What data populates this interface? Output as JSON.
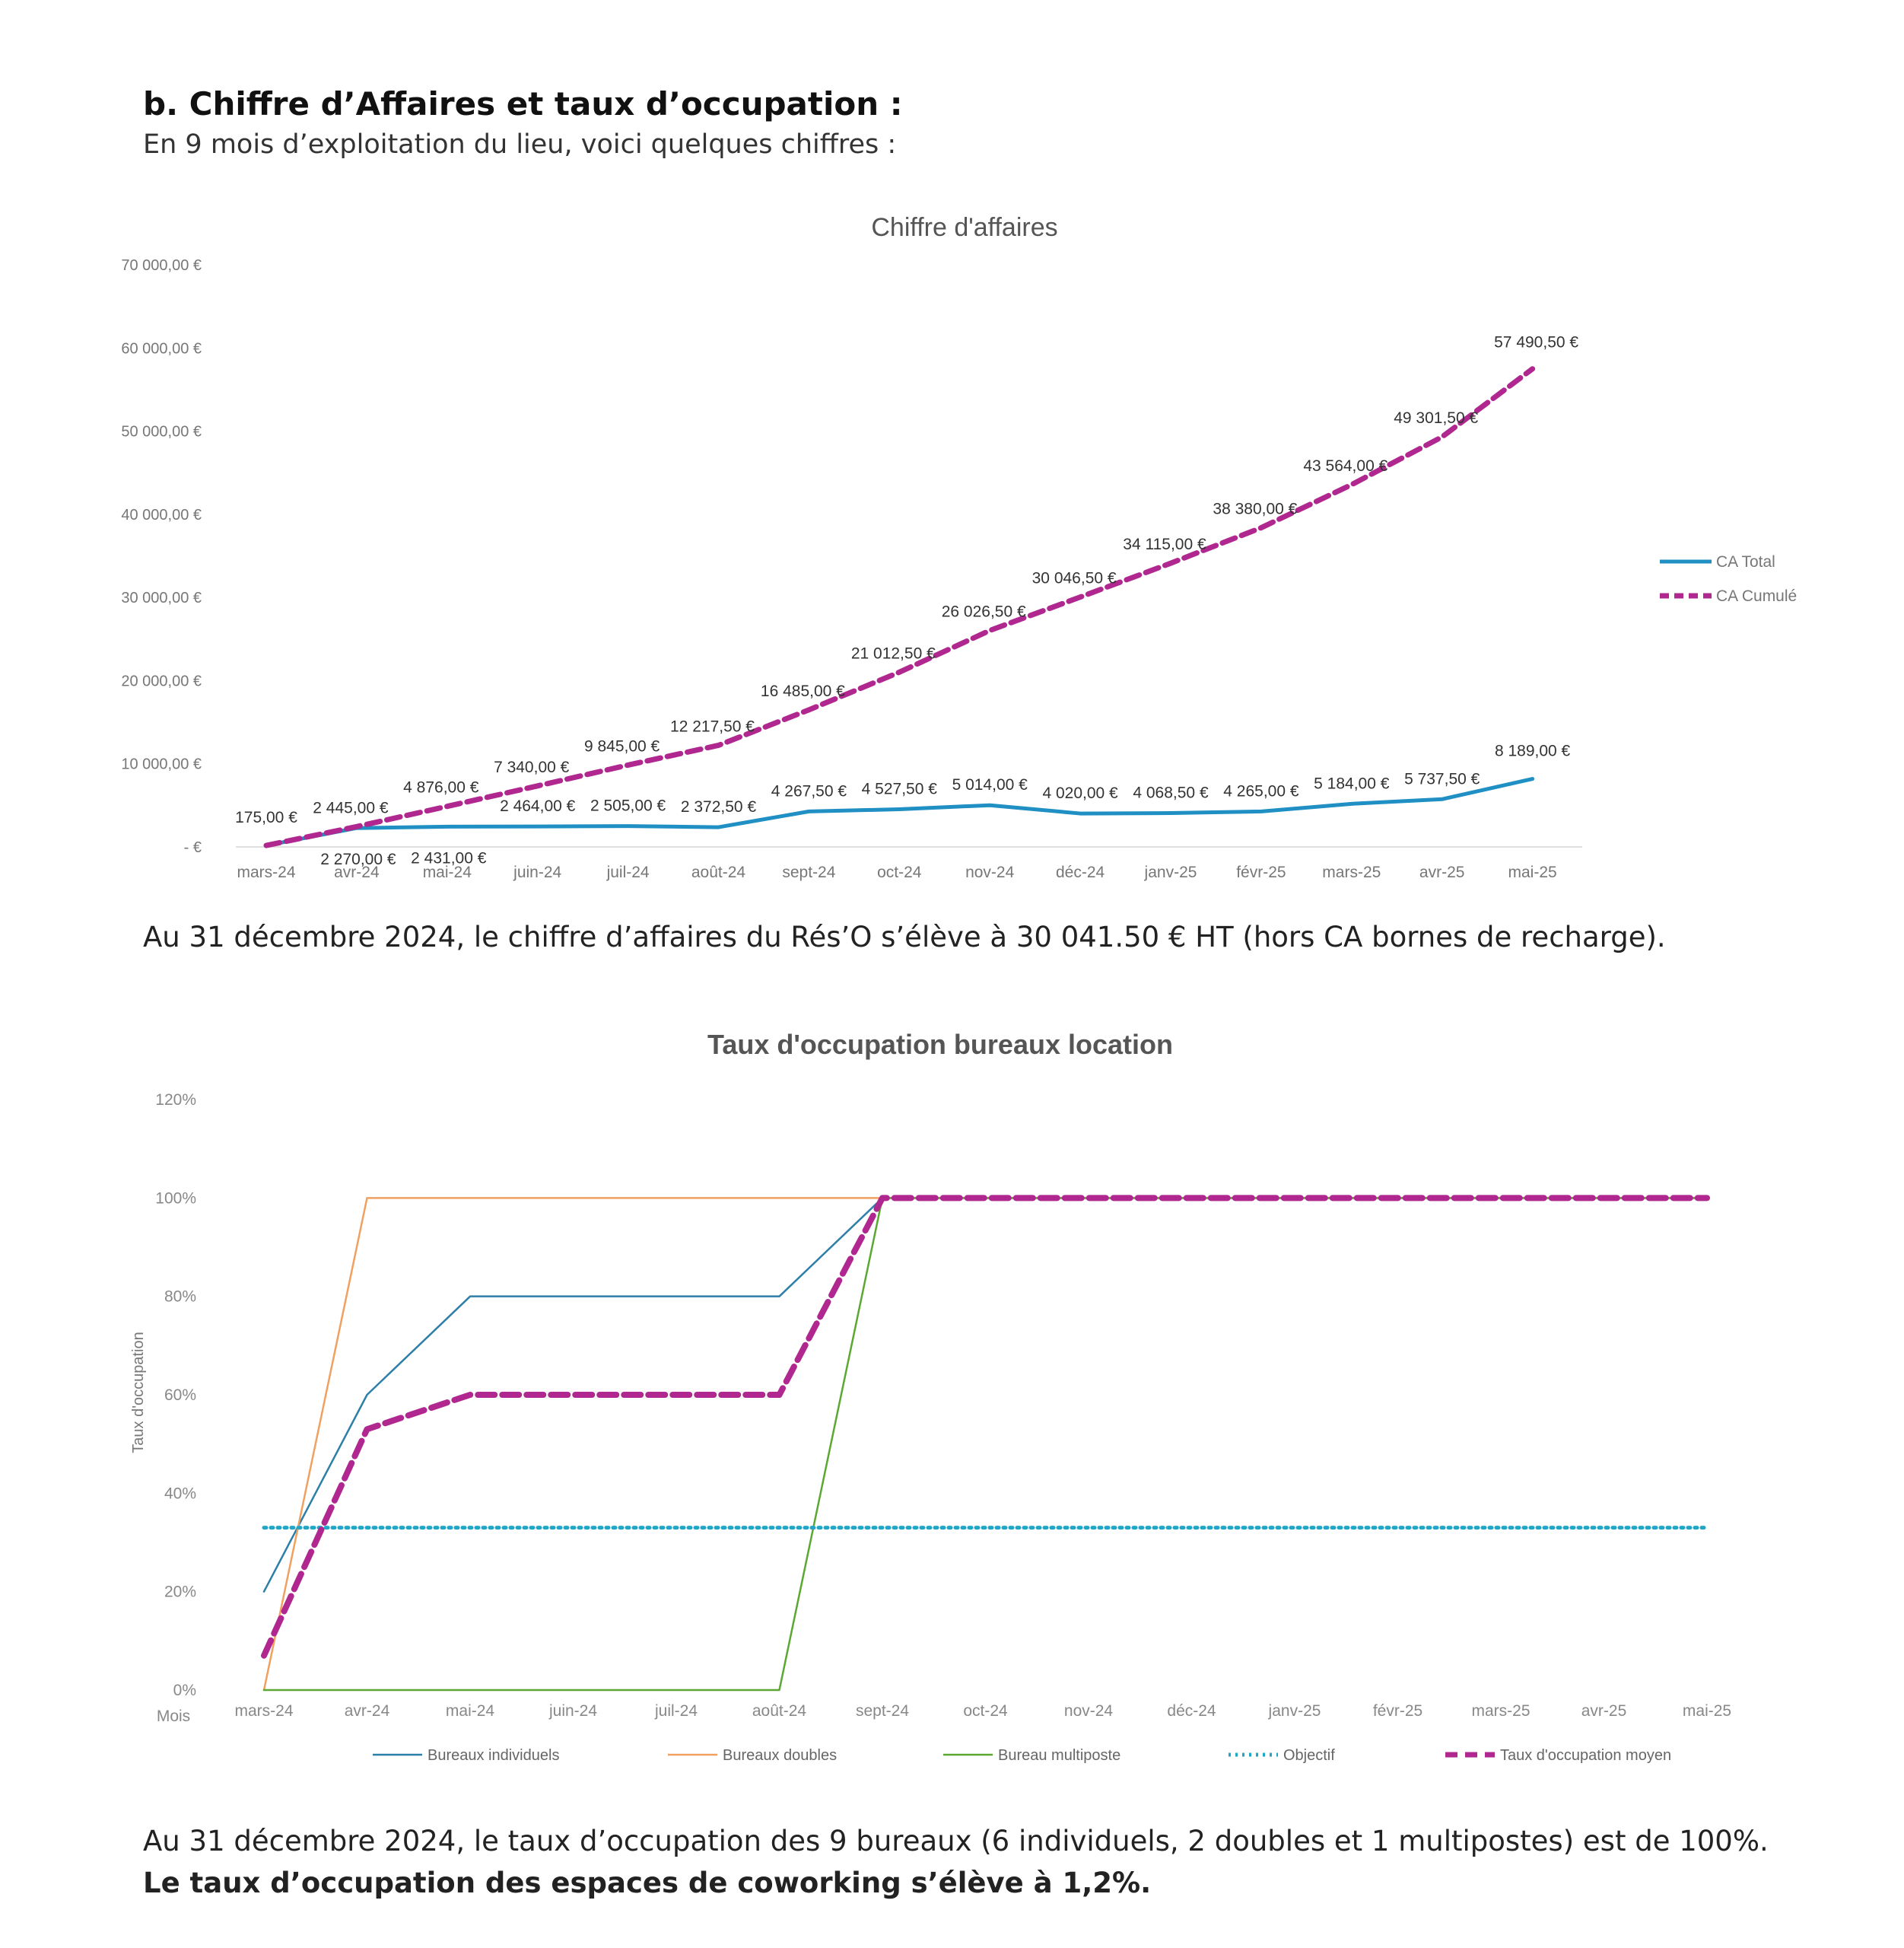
{
  "section": {
    "heading": "b. Chiffre d’Affaires et taux d’occupation :",
    "intro": "En 9 mois d’exploitation du lieu, voici quelques chiffres :"
  },
  "paragraphs": {
    "revenue_note": "Au 31 décembre 2024, le chiffre d’affaires du Rés’O s’élève à 30 041.50 € HT (hors CA bornes de recharge).",
    "occupancy_note": "Au 31 décembre 2024, le taux d’occupation des 9 bureaux (6 individuels, 2 doubles et 1 multipostes) est de 100%.",
    "coworking_note": "Le taux d’occupation des espaces de coworking s’élève à 1,2%."
  },
  "chart_data": [
    {
      "type": "line",
      "title": "Chiffre d'affaires",
      "xlabel": "",
      "ylabel": "",
      "categories": [
        "mars-24",
        "avr-24",
        "mai-24",
        "juin-24",
        "juil-24",
        "août-24",
        "sept-24",
        "oct-24",
        "nov-24",
        "déc-24",
        "janv-25",
        "févr-25",
        "mars-25",
        "avr-25",
        "mai-25"
      ],
      "ylim": [
        0,
        70000
      ],
      "yticks": [
        0,
        10000,
        20000,
        30000,
        40000,
        50000,
        60000,
        70000
      ],
      "ytick_labels": [
        "- €",
        "10 000,00 €",
        "20 000,00 €",
        "30 000,00 €",
        "40 000,00 €",
        "50 000,00 €",
        "60 000,00 €",
        "70 000,00 €"
      ],
      "grid": false,
      "legend_position": "right",
      "series": [
        {
          "name": "CA Total",
          "color": "#1f8fc4",
          "dash": "solid",
          "values": [
            175,
            2270,
            2431,
            2464,
            2505,
            2372.5,
            4267.5,
            4527.5,
            5014,
            4020,
            4068.5,
            4265,
            5184,
            5737.5,
            8189
          ],
          "labels": [
            "175,00 €",
            "2 270,00 €",
            "2 431,00 €",
            "2 464,00 €",
            "2 505,00 €",
            "2 372,50 €",
            "4 267,50 €",
            "4 527,50 €",
            "5 014,00 €",
            "4 020,00 €",
            "4 068,50 €",
            "4 265,00 €",
            "5 184,00 €",
            "5 737,50 €",
            "8 189,00 €"
          ]
        },
        {
          "name": "CA Cumulé",
          "color": "#b0278f",
          "dash": "dashed",
          "values": [
            175,
            2445,
            4876,
            7340,
            9845,
            12217.5,
            16485,
            21012.5,
            26026.5,
            30046.5,
            34115,
            38380,
            43564,
            49301.5,
            57490.5
          ],
          "labels": [
            "175,00 €",
            "2 445,00 €",
            "4 876,00 €",
            "7 340,00 €",
            "9 845,00 €",
            "12 217,50 €",
            "16 485,00 €",
            "21 012,50 €",
            "26 026,50 €",
            "30 046,50 €",
            "34 115,00 €",
            "38 380,00 €",
            "43 564,00 €",
            "49 301,50 €",
            "57 490,50 €"
          ]
        }
      ]
    },
    {
      "type": "line",
      "title": "Taux d'occupation bureaux location",
      "xlabel": "Mois",
      "ylabel": "Taux d'occupation",
      "categories": [
        "mars-24",
        "avr-24",
        "mai-24",
        "juin-24",
        "juil-24",
        "août-24",
        "sept-24",
        "oct-24",
        "nov-24",
        "déc-24",
        "janv-25",
        "févr-25",
        "mars-25",
        "avr-25",
        "mai-25"
      ],
      "ylim": [
        0,
        120
      ],
      "yticks": [
        0,
        20,
        40,
        60,
        80,
        100,
        120
      ],
      "ytick_labels": [
        "0%",
        "20%",
        "40%",
        "60%",
        "80%",
        "100%",
        "120%"
      ],
      "grid": false,
      "legend_position": "bottom",
      "series": [
        {
          "name": "Bureaux individuels",
          "color": "#2e7fa8",
          "dash": "solid",
          "values": [
            20,
            60,
            80,
            80,
            80,
            80,
            100,
            100,
            100,
            100,
            100,
            100,
            100,
            100,
            100
          ]
        },
        {
          "name": "Bureaux doubles",
          "color": "#f0a060",
          "dash": "solid",
          "values": [
            0,
            100,
            100,
            100,
            100,
            100,
            100,
            100,
            100,
            100,
            100,
            100,
            100,
            100,
            100
          ]
        },
        {
          "name": "Bureau multiposte",
          "color": "#5aa832",
          "dash": "solid",
          "values": [
            0,
            0,
            0,
            0,
            0,
            0,
            100,
            100,
            100,
            100,
            100,
            100,
            100,
            100,
            100
          ]
        },
        {
          "name": "Objectif",
          "color": "#22a6c8",
          "dash": "dotted",
          "values": [
            33,
            33,
            33,
            33,
            33,
            33,
            33,
            33,
            33,
            33,
            33,
            33,
            33,
            33,
            33
          ]
        },
        {
          "name": "Taux d'occupation moyen",
          "color": "#b0278f",
          "dash": "dashed",
          "values": [
            7,
            53,
            60,
            60,
            60,
            60,
            100,
            100,
            100,
            100,
            100,
            100,
            100,
            100,
            100
          ]
        }
      ]
    }
  ]
}
